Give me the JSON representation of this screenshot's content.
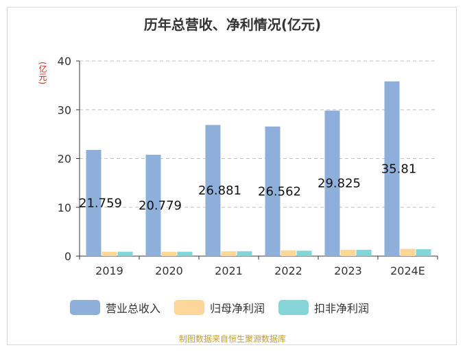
{
  "page": {
    "title": "历年总营收、净利情况(亿元)",
    "unit_label": "(亿元)",
    "footer": "制图数据来自恒生聚源数据库"
  },
  "colors": {
    "revenue": "#8fafdb",
    "net_profit": "#fdd799",
    "net_profit_ex": "#86d4d8",
    "grid": "#bfbfbf",
    "axis": "#333333",
    "footer": "#c8a028",
    "unit": "#e02020"
  },
  "chart_data": {
    "type": "bar",
    "title": "历年总营收、净利情况(亿元)",
    "ylabel": "(亿元)",
    "ylim": [
      0,
      40
    ],
    "yticks": [
      0,
      10,
      20,
      30,
      40
    ],
    "categories": [
      "2019",
      "2020",
      "2021",
      "2022",
      "2023",
      "2024E"
    ],
    "series": [
      {
        "name": "营业总收入",
        "values": [
          21.759,
          20.779,
          26.881,
          26.562,
          29.825,
          35.81
        ]
      },
      {
        "name": "归母净利润",
        "values": [
          0.9,
          0.9,
          1.0,
          1.2,
          1.3,
          1.5
        ]
      },
      {
        "name": "扣非净利润",
        "values": [
          0.9,
          0.9,
          1.0,
          1.1,
          1.3,
          1.4
        ]
      }
    ],
    "data_labels": [
      "21.759",
      "20.779",
      "26.881",
      "26.562",
      "29.825",
      "35.81"
    ],
    "grid": true,
    "legend_position": "bottom"
  }
}
